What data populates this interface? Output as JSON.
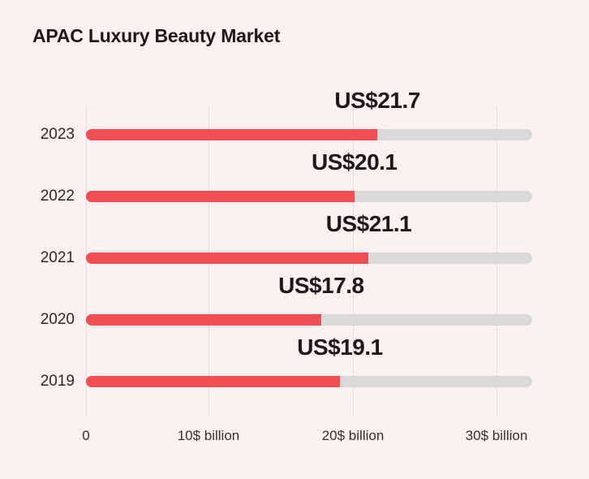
{
  "title": "APAC Luxury Beauty Market",
  "chart_data": {
    "type": "bar",
    "orientation": "horizontal",
    "title": "APAC Luxury Beauty Market",
    "categories": [
      "2023",
      "2022",
      "2021",
      "2020",
      "2019"
    ],
    "values": [
      21.7,
      20.1,
      21.1,
      17.8,
      19.1
    ],
    "value_labels": [
      "US$21.7",
      "US$20.1",
      "US$21.1",
      "US$17.8",
      "US$19.1"
    ],
    "unit": "US$ billion",
    "axis": {
      "tick_values": [
        0,
        10,
        20,
        30
      ],
      "tick_labels": [
        "0",
        "10$ billion",
        "20$ billion",
        "30$ billion"
      ],
      "track_max": 32.6,
      "grid": true,
      "legend": "none"
    },
    "colors": {
      "bar": "#EF4E55",
      "track": "#D9D9D9",
      "background": "#FDF0F0",
      "gridline": "#E6DADA",
      "text": "#1D191B"
    }
  }
}
